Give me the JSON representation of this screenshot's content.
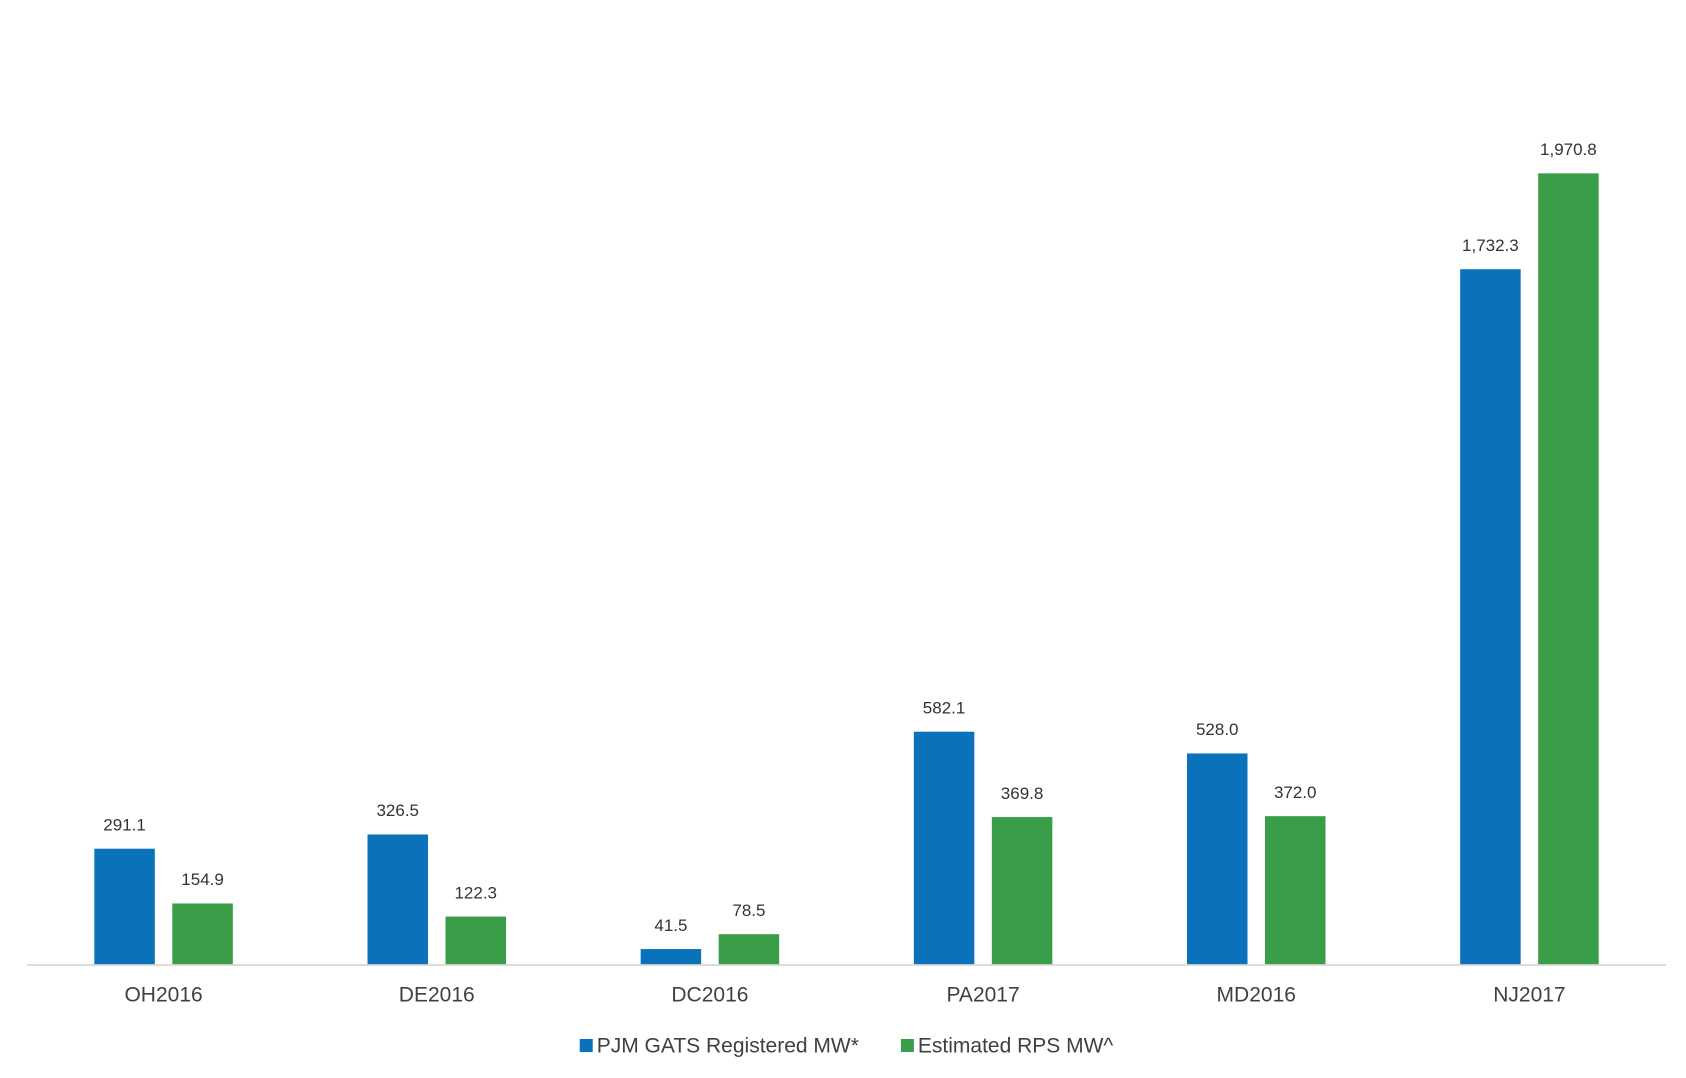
{
  "chart_data": {
    "type": "bar",
    "categories": [
      "OH2016",
      "DE2016",
      "DC2016",
      "PA2017",
      "MD2016",
      "NJ2017"
    ],
    "series": [
      {
        "name": "PJM GATS Registered MW*",
        "color": "#0a72ba",
        "values": [
          291.1,
          326.5,
          41.5,
          582.1,
          528.0,
          1732.3
        ],
        "value_labels": [
          "291.1",
          "326.5",
          "41.5",
          "582.1",
          "528.0",
          "1,732.3"
        ]
      },
      {
        "name": "Estimated RPS MW^",
        "color": "#3a9e48",
        "values": [
          154.9,
          122.3,
          78.5,
          369.8,
          372.0,
          1970.8
        ],
        "value_labels": [
          "154.9",
          "122.3",
          "78.5",
          "369.8",
          "372.0",
          "1,970.8"
        ]
      }
    ],
    "ylim": [
      0,
      2400
    ],
    "legend": "bottom"
  }
}
